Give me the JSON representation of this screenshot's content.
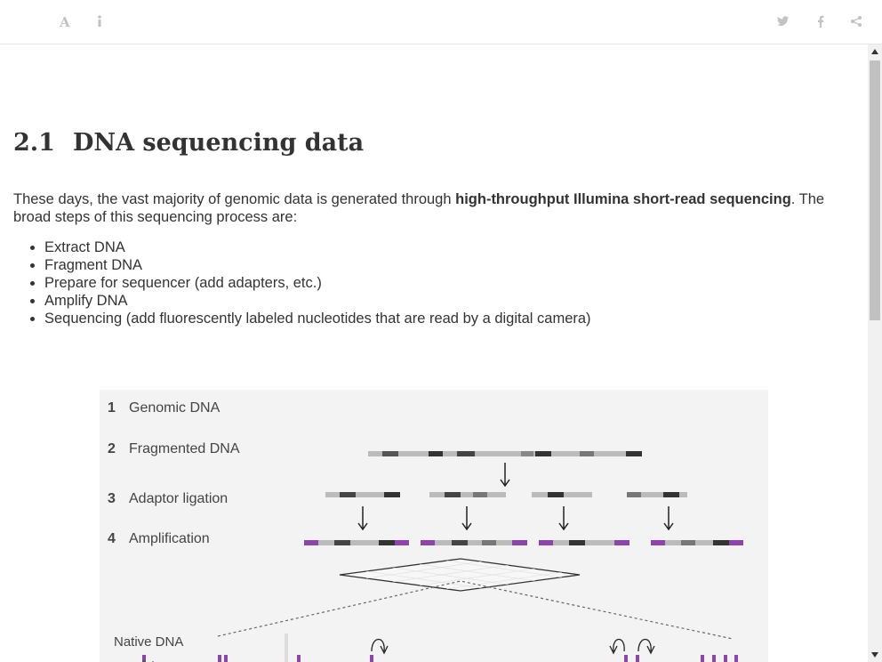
{
  "toolbar": {
    "left_icons": [
      "font-settings-icon",
      "info-icon"
    ],
    "right_icons": [
      "twitter-icon",
      "facebook-icon",
      "share-icon"
    ]
  },
  "section": {
    "number": "2.1",
    "title": "DNA sequencing data"
  },
  "intro": {
    "before": "These days, the vast majority of genomic data is generated through ",
    "bold": "high-throughput Illumina short-read sequencing",
    "after": ". The broad steps of this sequencing process are:"
  },
  "steps": [
    "Extract DNA",
    "Fragment DNA",
    "Prepare for sequencer (add adapters, etc.)",
    "Amplify DNA",
    "Sequencing (add fluorescently labeled nucleotides that are read by a digital camera)"
  ],
  "figure": {
    "stages": [
      {
        "num": "1",
        "label": "Genomic DNA"
      },
      {
        "num": "2",
        "label": "Fragmented DNA"
      },
      {
        "num": "3",
        "label": "Adaptor ligation"
      },
      {
        "num": "4",
        "label": "Amplification"
      }
    ],
    "native_label": "Native DNA"
  },
  "colors": {
    "text": "#333333",
    "icon": "#c2c2c2",
    "adaptor": "#8e44ad",
    "figure_bg": "#f3f3f3"
  }
}
